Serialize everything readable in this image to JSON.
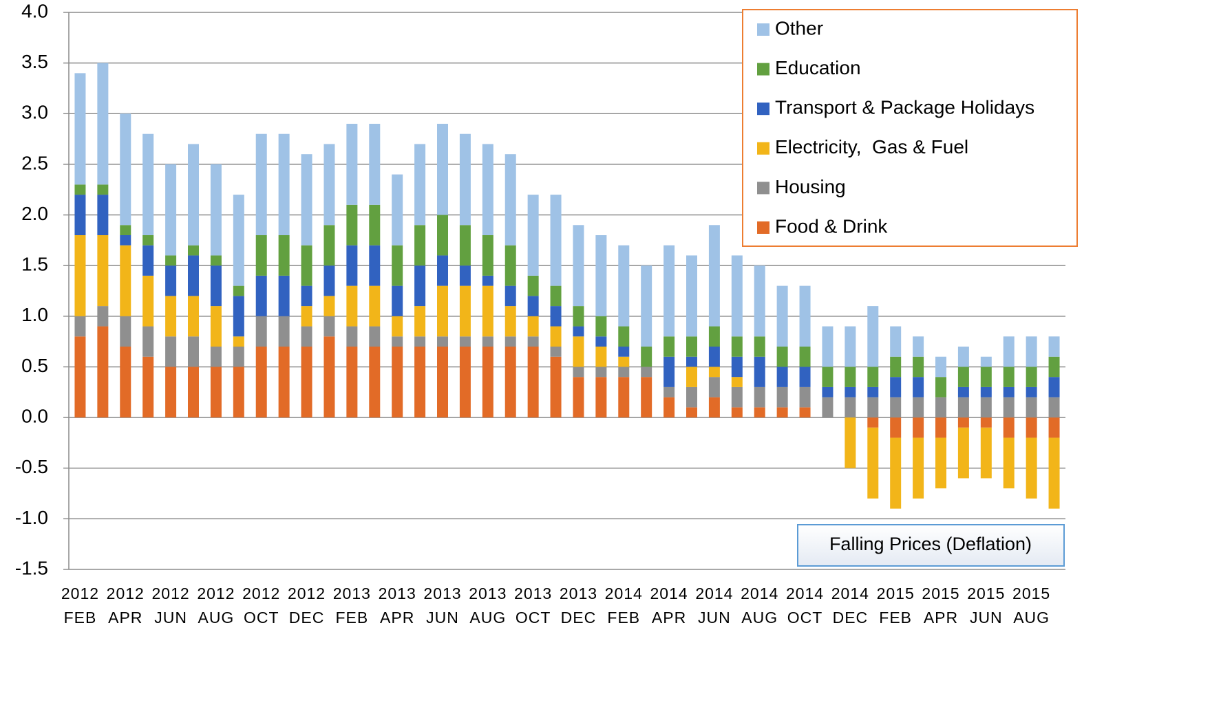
{
  "chart_data": {
    "type": "stacked_bar",
    "categories": [
      "2012 FEB",
      null,
      "2012 APR",
      null,
      "2012 JUN",
      null,
      "2012 AUG",
      null,
      "2012 OCT",
      null,
      "2012 DEC",
      null,
      "2013 FEB",
      null,
      "2013 APR",
      null,
      "2013 JUN",
      null,
      "2013 AUG",
      null,
      "2013 OCT",
      null,
      "2013 DEC",
      null,
      "2014 FEB",
      null,
      "2014 APR",
      null,
      "2014 JUN",
      null,
      "2014 AUG",
      null,
      "2014 OCT",
      null,
      "2014 DEC",
      null,
      "2015 FEB",
      null,
      "2015 APR",
      null,
      "2015 JUN",
      null,
      "2015 AUG",
      null
    ],
    "series": [
      {
        "name": "Food & Drink",
        "color": "#e26b27",
        "values": [
          0.8,
          0.9,
          0.7,
          0.6,
          0.5,
          0.5,
          0.5,
          0.5,
          0.7,
          0.7,
          0.7,
          0.8,
          0.7,
          0.7,
          0.7,
          0.7,
          0.7,
          0.7,
          0.7,
          0.7,
          0.7,
          0.6,
          0.4,
          0.4,
          0.4,
          0.4,
          0.2,
          0.1,
          0.2,
          0.1,
          0.1,
          0.1,
          0.1,
          0,
          0,
          -0.1,
          -0.2,
          -0.2,
          -0.2,
          -0.1,
          -0.1,
          -0.2,
          -0.2,
          -0.2
        ]
      },
      {
        "name": "Housing",
        "color": "#8f8f8f",
        "values": [
          0.2,
          0.2,
          0.3,
          0.3,
          0.3,
          0.3,
          0.2,
          0.2,
          0.3,
          0.3,
          0.2,
          0.2,
          0.2,
          0.2,
          0.1,
          0.1,
          0.1,
          0.1,
          0.1,
          0.1,
          0.1,
          0.1,
          0.1,
          0.1,
          0.1,
          0.1,
          0.1,
          0.2,
          0.2,
          0.2,
          0.2,
          0.2,
          0.2,
          0.2,
          0.2,
          0.2,
          0.2,
          0.2,
          0.2,
          0.2,
          0.2,
          0.2,
          0.2,
          0.2
        ]
      },
      {
        "name": "Electricity,  Gas & Fuel",
        "color": "#f2b519",
        "values": [
          0.8,
          0.7,
          0.7,
          0.5,
          0.4,
          0.4,
          0.4,
          0.1,
          0,
          0,
          0.2,
          0.2,
          0.4,
          0.4,
          0.2,
          0.3,
          0.5,
          0.5,
          0.5,
          0.3,
          0.2,
          0.2,
          0.3,
          0.2,
          0.1,
          0,
          0,
          0.2,
          0.1,
          0.1,
          0,
          0,
          0,
          0,
          -0.5,
          -0.7,
          -0.7,
          -0.6,
          -0.5,
          -0.5,
          -0.5,
          -0.5,
          -0.6,
          -0.7
        ]
      },
      {
        "name": "Transport & Package Holidays",
        "color": "#3162c0",
        "values": [
          0.4,
          0.4,
          0.1,
          0.3,
          0.3,
          0.4,
          0.4,
          0.4,
          0.4,
          0.4,
          0.2,
          0.3,
          0.4,
          0.4,
          0.3,
          0.4,
          0.3,
          0.2,
          0.1,
          0.2,
          0.2,
          0.2,
          0.1,
          0.1,
          0.1,
          0,
          0.3,
          0.1,
          0.2,
          0.2,
          0.3,
          0.2,
          0.2,
          0.1,
          0.1,
          0.1,
          0.2,
          0.2,
          0,
          0.1,
          0.1,
          0.1,
          0.1,
          0.2
        ]
      },
      {
        "name": "Education",
        "color": "#62a040",
        "values": [
          0.1,
          0.1,
          0.1,
          0.1,
          0.1,
          0.1,
          0.1,
          0.1,
          0.4,
          0.4,
          0.4,
          0.4,
          0.4,
          0.4,
          0.4,
          0.4,
          0.4,
          0.4,
          0.4,
          0.4,
          0.2,
          0.2,
          0.2,
          0.2,
          0.2,
          0.2,
          0.2,
          0.2,
          0.2,
          0.2,
          0.2,
          0.2,
          0.2,
          0.2,
          0.2,
          0.2,
          0.2,
          0.2,
          0.2,
          0.2,
          0.2,
          0.2,
          0.2,
          0.2
        ]
      },
      {
        "name": "Other",
        "color": "#9fc2e6",
        "values": [
          1.1,
          1.2,
          1.1,
          1.0,
          0.9,
          1.0,
          0.9,
          0.9,
          1.0,
          1.0,
          0.9,
          0.8,
          0.8,
          0.8,
          0.7,
          0.8,
          0.9,
          0.9,
          0.9,
          0.9,
          0.8,
          0.9,
          0.8,
          0.8,
          0.8,
          0.8,
          0.9,
          0.8,
          1.0,
          0.8,
          0.7,
          0.6,
          0.6,
          0.4,
          0.4,
          0.6,
          0.3,
          0.2,
          0.2,
          0.2,
          0.1,
          0.3,
          0.3,
          0.2
        ]
      }
    ],
    "ylim": [
      -1.5,
      4
    ],
    "yticks": [
      {
        "value": -1.5,
        "label": "-1.5"
      },
      {
        "value": -1,
        "label": "-1.0"
      },
      -0.5,
      {
        "value": 0,
        "label": "0.0"
      },
      0.5,
      {
        "value": 1,
        "label": "1.0"
      },
      1.5,
      {
        "value": 2,
        "label": "2.0"
      },
      2.5,
      {
        "value": 3,
        "label": "3.0"
      },
      3.5,
      {
        "value": 4,
        "label": "4.0"
      }
    ],
    "grid": true,
    "legend": "upper right",
    "annotations": [
      "Falling Prices (Deflation)"
    ]
  }
}
